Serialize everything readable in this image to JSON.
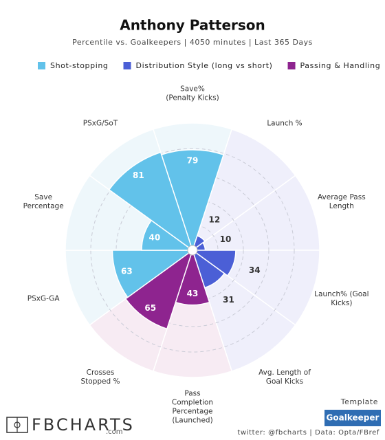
{
  "chart_data": {
    "type": "polar_bar",
    "title": "Anthony Patterson",
    "subtitle": "Percentile vs. Goalkeepers | 4050 minutes | Last 365 Days",
    "legend": [
      {
        "name": "Shot-stopping",
        "color": "#62c2ea"
      },
      {
        "name": "Distribution Style (long vs short)",
        "color": "#4b5fd6"
      },
      {
        "name": "Passing & Handling",
        "color": "#8e248f"
      }
    ],
    "categories": [
      "Save%\n(Penalty Kicks)",
      "Launch %",
      "Average Pass\nLength",
      "Launch% (Goal\nKicks)",
      "Avg. Length of\nGoal Kicks",
      "Pass\nCompletion\nPercentage\n(Launched)",
      "Crosses\nStopped %",
      "PSxG-GA",
      "Save\nPercentage",
      "PSxG/SoT"
    ],
    "values": [
      79,
      12,
      10,
      34,
      31,
      43,
      65,
      63,
      40,
      81
    ],
    "colors": [
      "#62c2ea",
      "#4b5fd6",
      "#4b5fd6",
      "#4b5fd6",
      "#4b5fd6",
      "#8e248f",
      "#8e248f",
      "#62c2ea",
      "#62c2ea",
      "#62c2ea"
    ],
    "background_colors": [
      "#eef7fb",
      "#efeffb",
      "#efeffb",
      "#efeffb",
      "#efeffb",
      "#f7ebf3",
      "#f7ebf3",
      "#eef7fb",
      "#eef7fb",
      "#eef7fb"
    ],
    "rlim": [
      0,
      100
    ],
    "rticks": [
      20,
      40,
      60,
      80
    ],
    "brand": "FBCHARTS",
    "brand_suffix": ".com",
    "template_label": "Template",
    "template": "Goalkeeper",
    "credit": "twitter: @fbcharts | Data: Opta/FBref"
  }
}
